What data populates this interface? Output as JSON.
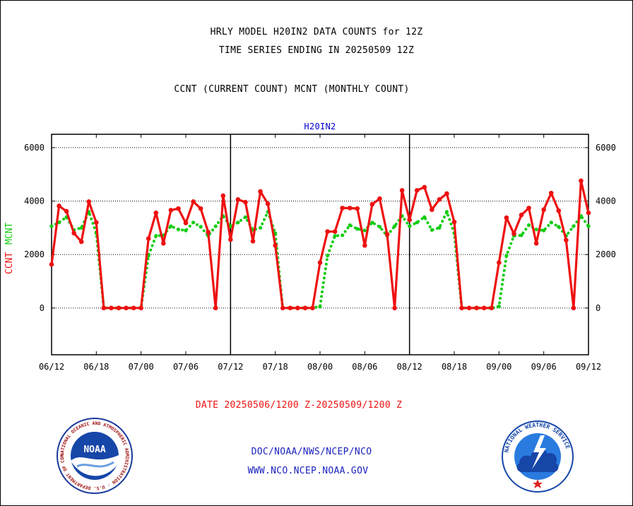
{
  "titles": {
    "line1": "HRLY MODEL H20IN2 DATA COUNTS for 12Z",
    "line2": "TIME SERIES ENDING IN 20250509 12Z",
    "line3": "CCNT (CURRENT COUNT) MCNT (MONTHLY COUNT)"
  },
  "panel_label": "H20IN2",
  "ylabels": {
    "ccnt": "CCNT",
    "mcnt": "MCNT"
  },
  "date_range": "DATE 20250506/1200 Z-20250509/1200 Z",
  "credits": {
    "org": "DOC/NOAA/NWS/NCEP/NCO",
    "url": "WWW.NCO.NCEP.NOAA.GOV"
  },
  "logos": {
    "noaa": {
      "center_text": "NOAA",
      "ring_text": "NATIONAL OCEANIC AND ATMOSPHERIC ADMINISTRATION · U.S. DEPARTMENT OF COMMERCE"
    },
    "nws": {
      "ring_text": "NATIONAL WEATHER SERVICE"
    }
  },
  "colors": {
    "ccnt": "#ee1111",
    "mcnt": "#11cc11",
    "panel": "#0000cc",
    "credits": "#1a22bb"
  },
  "chart_data": {
    "type": "line",
    "xlabel": "",
    "ylabel": "",
    "xlim": [
      0,
      72
    ],
    "ylim": [
      -1750,
      6500
    ],
    "x_ticks": [
      0,
      6,
      12,
      18,
      24,
      30,
      36,
      42,
      48,
      54,
      60,
      66,
      72
    ],
    "x_tick_labels": [
      "06/12",
      "06/18",
      "07/00",
      "07/06",
      "07/12",
      "07/18",
      "08/00",
      "08/06",
      "08/12",
      "08/18",
      "09/00",
      "09/06",
      "09/12"
    ],
    "day_boundaries": [
      24,
      48
    ],
    "y_ticks": [
      0,
      2000,
      4000,
      6000
    ],
    "y_tick_labels": [
      "0",
      "2000",
      "4000",
      "6000"
    ],
    "grid": "horizontal dotted",
    "series": [
      {
        "name": "CCNT",
        "color": "#ee1111",
        "style": "solid",
        "x": [
          0,
          1,
          2,
          3,
          4,
          5,
          6,
          7,
          8,
          9,
          10,
          11,
          12,
          13,
          14,
          15,
          16,
          17,
          18,
          19,
          20,
          21,
          22,
          23,
          24,
          25,
          26,
          27,
          28,
          29,
          30,
          31,
          32,
          33,
          34,
          35,
          36,
          37,
          38,
          39,
          40,
          41,
          42,
          43,
          44,
          45,
          46,
          47,
          48,
          49,
          50,
          51,
          52,
          53,
          54,
          55,
          56,
          57,
          58,
          59,
          60,
          61,
          62,
          63,
          64,
          65,
          66,
          67,
          68,
          69,
          70,
          71,
          72
        ],
        "values": [
          1630,
          3820,
          3620,
          2800,
          2480,
          3980,
          3200,
          0,
          0,
          0,
          0,
          0,
          0,
          2600,
          3560,
          2420,
          3660,
          3720,
          3180,
          3980,
          3720,
          2840,
          0,
          4200,
          2560,
          4060,
          3960,
          2500,
          4360,
          3900,
          2340,
          0,
          0,
          0,
          0,
          0,
          1700,
          2860,
          2860,
          3740,
          3740,
          3720,
          2340,
          3880,
          4090,
          2760,
          0,
          4400,
          3300,
          4400,
          4520,
          3680,
          4060,
          4280,
          3220,
          0,
          0,
          0,
          0,
          0,
          1700,
          3380,
          2780,
          3480,
          3740,
          2420,
          3680,
          4300,
          3640,
          2540,
          0,
          4760,
          3560
        ]
      },
      {
        "name": "MCNT",
        "color": "#11cc11",
        "style": "dotted",
        "x": [
          0,
          1,
          2,
          3,
          4,
          5,
          6,
          7,
          8,
          9,
          10,
          11,
          12,
          13,
          14,
          15,
          16,
          17,
          18,
          19,
          20,
          21,
          22,
          23,
          24,
          25,
          26,
          27,
          28,
          29,
          30,
          31,
          32,
          33,
          34,
          35,
          36,
          37,
          38,
          39,
          40,
          41,
          42,
          43,
          44,
          45,
          46,
          47,
          48,
          49,
          50,
          51,
          52,
          53,
          54,
          55,
          56,
          57,
          58,
          59,
          60,
          61,
          62,
          63,
          64,
          65,
          66,
          67,
          68,
          69,
          70,
          71,
          72
        ],
        "values": [
          3060,
          3200,
          3400,
          2920,
          3000,
          3600,
          2800,
          0,
          0,
          0,
          0,
          0,
          0,
          1960,
          2700,
          2720,
          3060,
          2940,
          2900,
          3200,
          3040,
          2700,
          3060,
          3440,
          3060,
          3200,
          3400,
          2920,
          3000,
          3600,
          2800,
          0,
          0,
          0,
          0,
          0,
          60,
          1960,
          2700,
          2720,
          3100,
          2960,
          2900,
          3200,
          3040,
          2700,
          3060,
          3440,
          3060,
          3200,
          3400,
          2920,
          3000,
          3600,
          2800,
          0,
          0,
          0,
          0,
          0,
          60,
          1960,
          2700,
          2720,
          3100,
          2940,
          2900,
          3200,
          3040,
          2700,
          3060,
          3440,
          3060
        ]
      }
    ]
  }
}
